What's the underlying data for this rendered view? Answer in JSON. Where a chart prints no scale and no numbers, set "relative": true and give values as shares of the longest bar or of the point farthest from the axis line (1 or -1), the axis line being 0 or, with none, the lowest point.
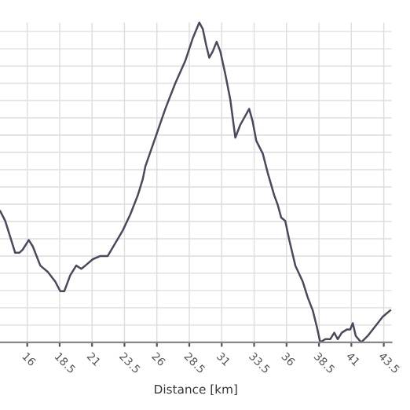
{
  "chart_data": {
    "type": "line",
    "xlabel": "Distance [km]",
    "relative": true,
    "grid": true,
    "color": "#4a4a5e",
    "x": [
      13.92,
      14.3,
      14.69,
      15.07,
      15.39,
      15.65,
      16.12,
      16.43,
      17.01,
      17.59,
      18.16,
      18.55,
      18.86,
      19.32,
      19.78,
      20.17,
      20.48,
      21.06,
      21.64,
      22.21,
      22.79,
      23.37,
      23.95,
      24.53,
      24.91,
      25.11,
      25.88,
      26.65,
      27.42,
      28.19,
      28.76,
      29.27,
      29.54,
      29.8,
      30.04,
      30.31,
      30.61,
      30.89,
      31.27,
      31.66,
      32.05,
      32.43,
      33.12,
      33.39,
      33.67,
      34.17,
      34.55,
      35.05,
      35.32,
      35.59,
      35.9,
      36.21,
      36.68,
      37.25,
      37.64,
      38.02,
      38.33,
      38.6,
      38.99,
      39.37,
      39.68,
      39.95,
      40.26,
      40.64,
      40.91,
      41.11,
      41.34,
      41.76,
      42.26,
      42.84,
      43.42,
      44.0
    ],
    "values": [
      0.41,
      0.38,
      0.33,
      0.28,
      0.28,
      0.29,
      0.32,
      0.3,
      0.24,
      0.22,
      0.19,
      0.16,
      0.16,
      0.21,
      0.24,
      0.23,
      0.24,
      0.26,
      0.27,
      0.27,
      0.31,
      0.35,
      0.4,
      0.46,
      0.51,
      0.55,
      0.64,
      0.73,
      0.81,
      0.88,
      0.95,
      1.0,
      0.98,
      0.93,
      0.89,
      0.91,
      0.94,
      0.91,
      0.84,
      0.76,
      0.64,
      0.68,
      0.73,
      0.69,
      0.63,
      0.59,
      0.53,
      0.46,
      0.43,
      0.39,
      0.38,
      0.32,
      0.24,
      0.19,
      0.14,
      0.1,
      0.05,
      0.0,
      0.01,
      0.01,
      0.03,
      0.01,
      0.03,
      0.04,
      0.04,
      0.06,
      0.02,
      0.0,
      0.02,
      0.05,
      0.08,
      0.1
    ],
    "xlim": [
      13.9,
      44.1
    ],
    "xticks": [
      16,
      18.5,
      21,
      23.5,
      26,
      28.5,
      31,
      33.5,
      36,
      38.5,
      41,
      43.5
    ]
  }
}
